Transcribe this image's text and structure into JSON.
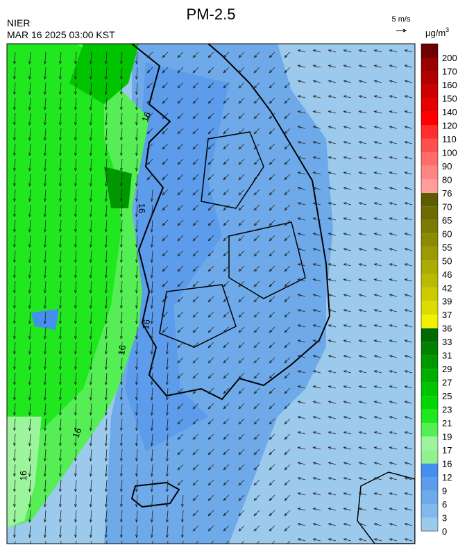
{
  "title": "PM-2.5",
  "agency": "NIER",
  "timestamp": "MAR 16 2025 03:00 KST",
  "wind_scale": "5 m/s",
  "unit": "μg/m",
  "unit_superscript": "3",
  "contour_labels": [
    16,
    16,
    16,
    16,
    16,
    16
  ],
  "colorbar": {
    "levels": [
      0,
      3,
      6,
      9,
      12,
      16,
      17,
      19,
      21,
      23,
      25,
      27,
      29,
      31,
      33,
      36,
      37,
      39,
      42,
      46,
      50,
      55,
      60,
      65,
      70,
      76,
      80,
      90,
      100,
      110,
      120,
      140,
      150,
      160,
      170,
      200
    ],
    "colors": [
      "#9ccaec",
      "#82b9ec",
      "#6eaaea",
      "#5c9ceb",
      "#4590ef",
      "#8ff28f",
      "#9cf59c",
      "#55ee55",
      "#1fe81f",
      "#00d800",
      "#00c400",
      "#00ae00",
      "#009800",
      "#008200",
      "#006c00",
      "#f2f200",
      "#dcdc00",
      "#cbcb00",
      "#baba00",
      "#abab00",
      "#9b9b00",
      "#8b8b00",
      "#7b7b00",
      "#6b6b00",
      "#5c5c00",
      "#ff9c9c",
      "#ff8585",
      "#ff6c6c",
      "#ff5050",
      "#ff2e2e",
      "#ff0000",
      "#e60000",
      "#cc0000",
      "#b30000",
      "#990000",
      "#6e0000"
    ]
  }
}
